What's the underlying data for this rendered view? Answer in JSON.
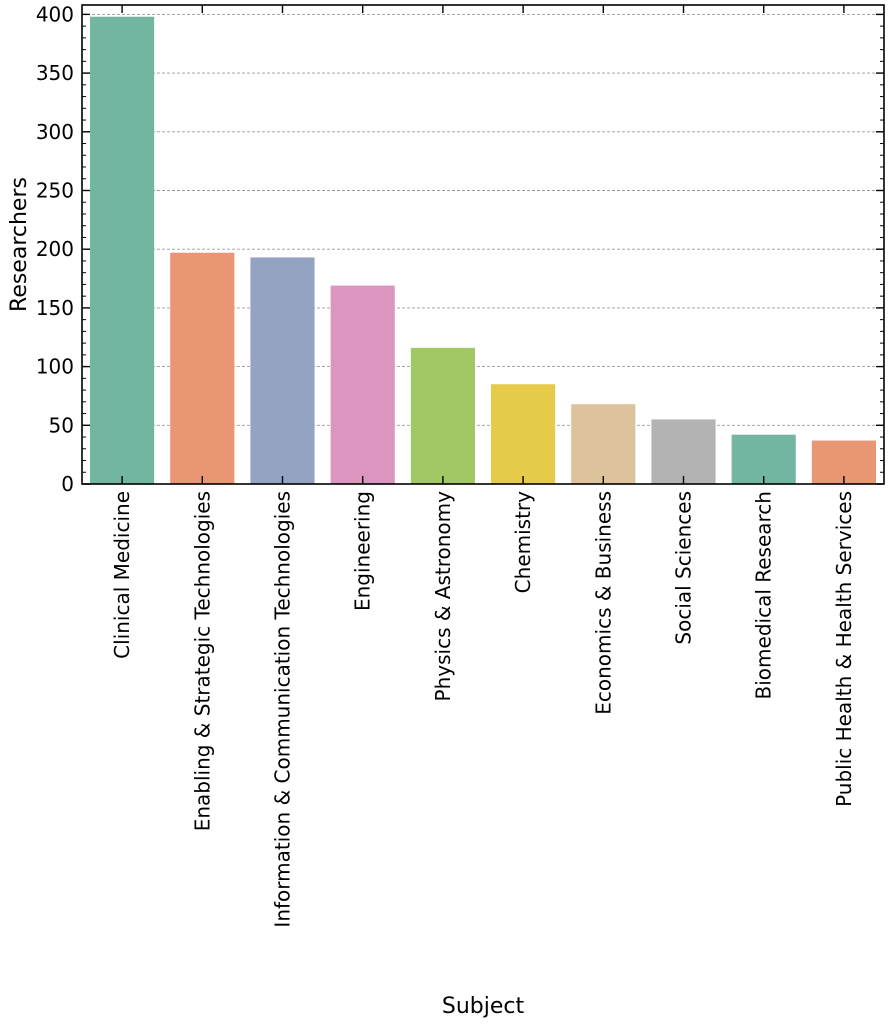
{
  "chart_data": {
    "type": "bar",
    "title": "",
    "xlabel": "Subject",
    "ylabel": "Researchers",
    "categories": [
      "Clinical Medicine",
      "Enabling & Strategic Technologies",
      "Information & Communication Technologies",
      "Engineering",
      "Physics & Astronomy",
      "Chemistry",
      "Economics & Business",
      "Social Sciences",
      "Biomedical Research",
      "Public Health & Health Services"
    ],
    "values": [
      398,
      197,
      193,
      169,
      116,
      85,
      68,
      55,
      42,
      37
    ],
    "colors": [
      "#72b6a1",
      "#e99675",
      "#95a3c3",
      "#db96c0",
      "#a2c865",
      "#e5cb49",
      "#dcc39b",
      "#b3b3b3",
      "#72b6a1",
      "#e99675"
    ],
    "ylim": [
      0,
      408
    ],
    "yticks": [
      0,
      50,
      100,
      150,
      200,
      250,
      300,
      350,
      400
    ],
    "grid": "y-dashed",
    "legend": "none"
  }
}
